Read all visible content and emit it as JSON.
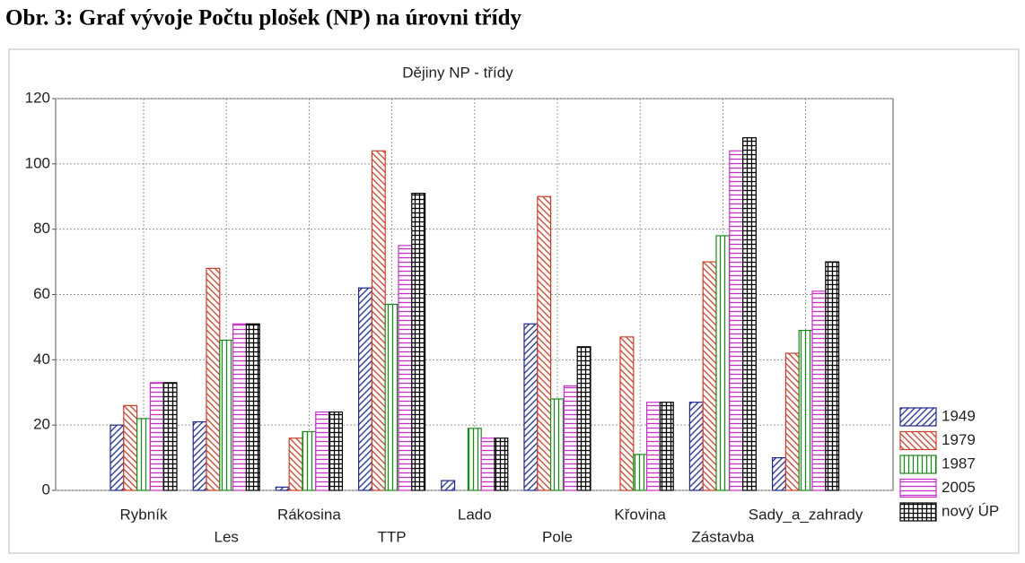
{
  "caption": "Obr. 3: Graf vývoje Počtu plošek (NP) na úrovni třídy",
  "chart_data": {
    "type": "bar",
    "title": "Dějiny NP - třídy",
    "categories": [
      "Rybník",
      "Les",
      "Rákosina",
      "TTP",
      "Lado",
      "Pole",
      "Křovina",
      "Zástavba",
      "Sady_a_zahrady"
    ],
    "series": [
      {
        "name": "1949",
        "color": "#1f2a8c",
        "pattern": "diag-up",
        "values": [
          20,
          21,
          1,
          62,
          3,
          51,
          0,
          27,
          10
        ]
      },
      {
        "name": "1979",
        "color": "#c8402a",
        "pattern": "diag-down",
        "values": [
          26,
          68,
          16,
          104,
          0,
          90,
          47,
          70,
          42
        ]
      },
      {
        "name": "1987",
        "color": "#1e8a1e",
        "pattern": "vertical",
        "values": [
          22,
          46,
          18,
          57,
          19,
          28,
          11,
          78,
          49
        ]
      },
      {
        "name": "2005",
        "color": "#c82fc8",
        "pattern": "horizontal",
        "values": [
          33,
          51,
          24,
          75,
          16,
          32,
          27,
          104,
          61
        ]
      },
      {
        "name": "nový ÚP",
        "color": "#000000",
        "pattern": "grid",
        "values": [
          33,
          51,
          24,
          91,
          16,
          44,
          27,
          108,
          70
        ]
      }
    ],
    "ylim": [
      0,
      120
    ],
    "yticks": [
      0,
      20,
      40,
      60,
      80,
      100,
      120
    ],
    "grid": true,
    "legend": "right"
  }
}
